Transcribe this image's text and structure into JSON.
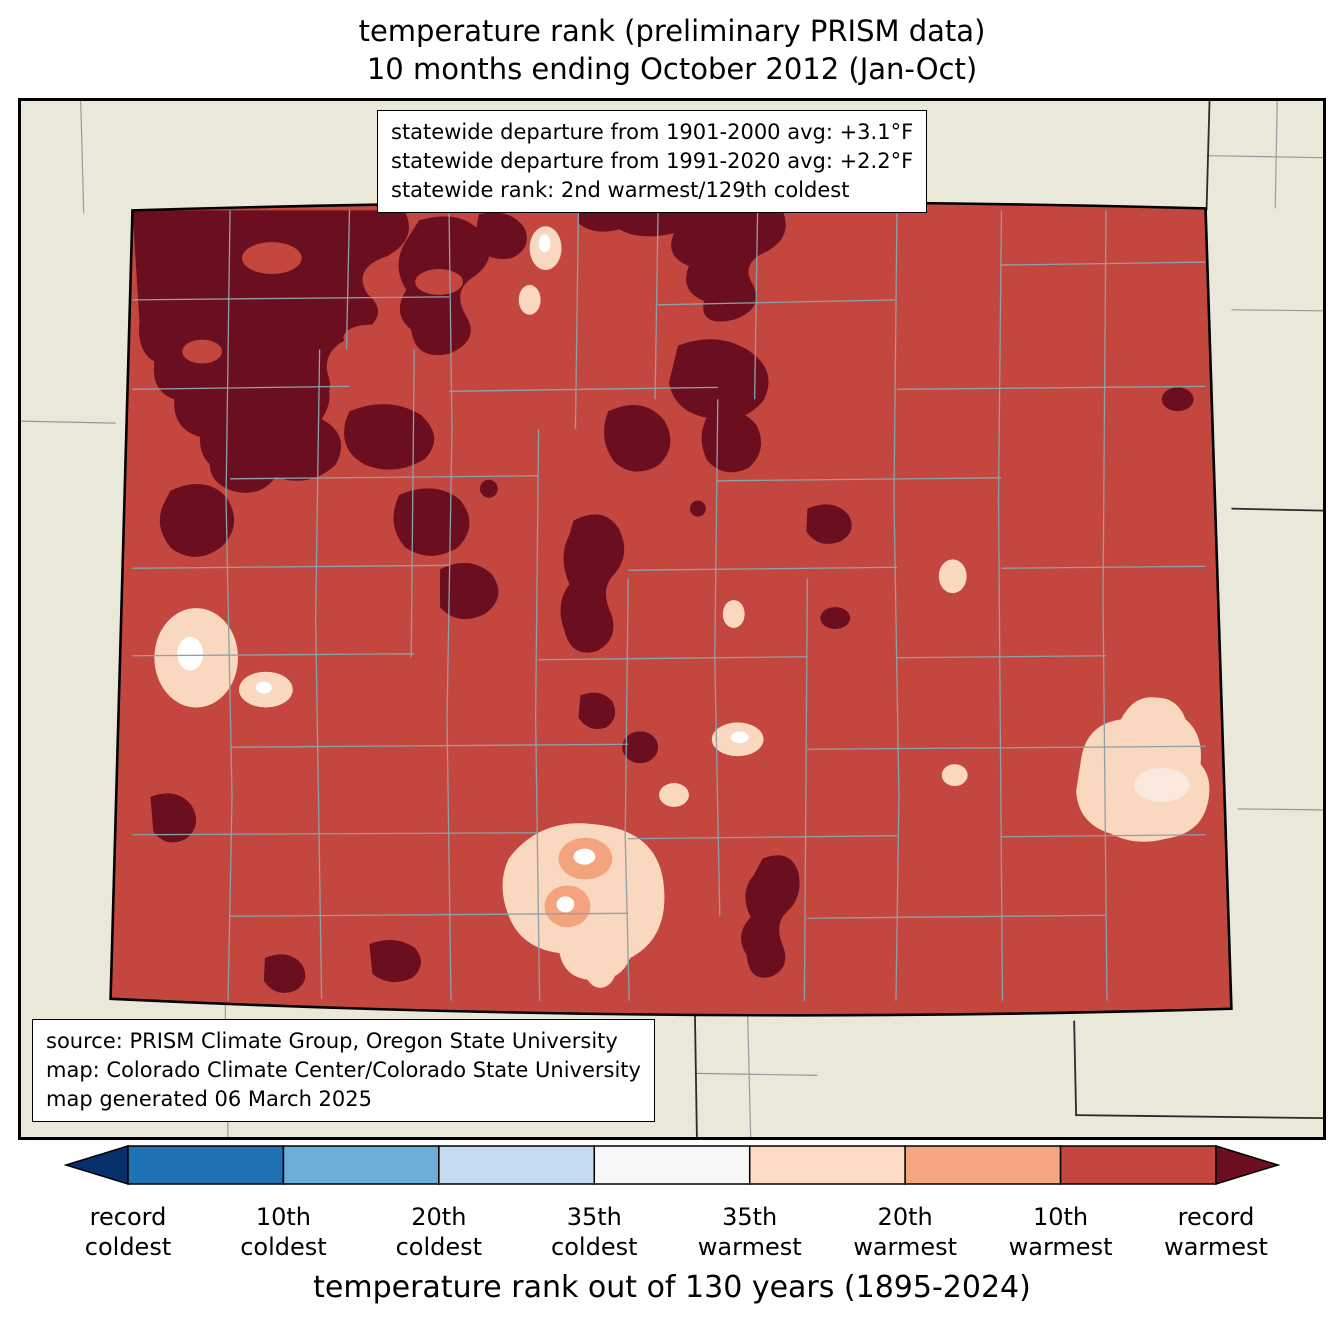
{
  "title": {
    "line1": "temperature rank (preliminary PRISM data)",
    "line2": "10 months ending October 2012 (Jan-Oct)"
  },
  "stats_box": {
    "line1": "statewide departure from 1901-2000 avg: +3.1°F",
    "line2": "statewide departure from 1991-2020 avg: +2.2°F",
    "line3": "statewide rank: 2nd warmest/129th coldest"
  },
  "source_box": {
    "line1": "source: PRISM Climate Group, Oregon State University",
    "line2": "map: Colorado Climate Center/Colorado State University",
    "line3": "map generated 06 March 2025"
  },
  "map": {
    "palette": {
      "outside_bg": "#eae8d8",
      "map_main": "#c4473f",
      "record_warmest": "#6b0e1f",
      "warm_20th": "#f3a47f",
      "warm_35th": "#fad7bf",
      "near_white": "#fce9dd",
      "white_spot": "#ffffff",
      "county_line": "#8fa0a8",
      "neighbor_line": "#999999",
      "state_line": "#2a2a2a"
    }
  },
  "colorbar": {
    "left_arrow_color": "#08306b",
    "right_arrow_color": "#6b0e1f",
    "segments": [
      {
        "name": "coldest-10th-band",
        "color": "#2171b5"
      },
      {
        "name": "coldest-20th-band",
        "color": "#6baed6"
      },
      {
        "name": "coldest-35th-band",
        "color": "#c6dbef"
      },
      {
        "name": "middle-band",
        "color": "#f7f7f7"
      },
      {
        "name": "warmest-35th-band",
        "color": "#fddbc7"
      },
      {
        "name": "warmest-20th-band",
        "color": "#f4a582"
      },
      {
        "name": "warmest-10th-band",
        "color": "#c4473f"
      }
    ],
    "labels": [
      {
        "line1": "record",
        "line2": "coldest"
      },
      {
        "line1": "10th",
        "line2": "coldest"
      },
      {
        "line1": "20th",
        "line2": "coldest"
      },
      {
        "line1": "35th",
        "line2": "coldest"
      },
      {
        "line1": "35th",
        "line2": "warmest"
      },
      {
        "line1": "20th",
        "line2": "warmest"
      },
      {
        "line1": "10th",
        "line2": "warmest"
      },
      {
        "line1": "record",
        "line2": "warmest"
      }
    ],
    "axis_label": "temperature rank out of 130 years (1895-2024)"
  }
}
